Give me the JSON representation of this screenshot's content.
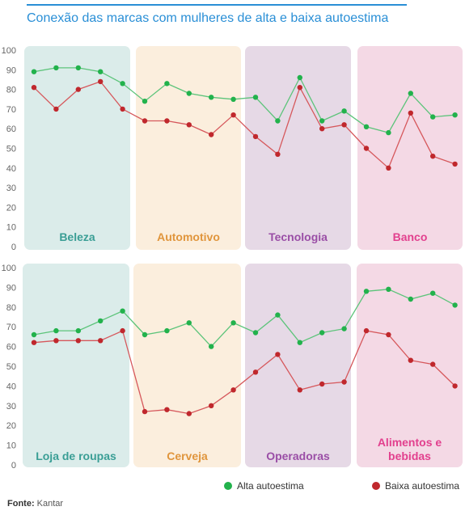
{
  "title": "Conexão das marcas com mulheres de alta e baixa autoestima",
  "legend": {
    "high": "Alta autoestima",
    "low": "Baixa autoestima"
  },
  "source": {
    "label": "Fonte:",
    "value": "Kantar"
  },
  "colors": {
    "green": "#22b24c",
    "red": "#c0282d",
    "green_line": "#5cc47a",
    "red_line": "#d6585c",
    "category_bg": [
      "#dbecea",
      "#fbeedd",
      "#e6d9e6",
      "#f4d9e5"
    ],
    "category_label": [
      "#3a9e95",
      "#e0953c",
      "#9a4ea6",
      "#e2408e"
    ]
  },
  "chart_data": [
    {
      "type": "line",
      "ylim": [
        0,
        100
      ],
      "yticks": [
        "0",
        "10",
        "20",
        "30",
        "40",
        "50",
        "60",
        "70",
        "80",
        "90",
        "100"
      ],
      "categories": [
        {
          "label": "Beleza",
          "x": [
            1,
            5
          ]
        },
        {
          "label": "Automotivo",
          "x": [
            6,
            10
          ]
        },
        {
          "label": "Tecnologia",
          "x": [
            11,
            15
          ]
        },
        {
          "label": "Banco",
          "x": [
            16,
            20
          ]
        }
      ],
      "x": [
        1,
        2,
        3,
        4,
        5,
        6,
        7,
        8,
        9,
        10,
        11,
        12,
        13,
        14,
        15,
        16,
        17,
        18,
        19,
        20
      ],
      "series": [
        {
          "name": "Alta autoestima",
          "color": "green",
          "values": [
            89,
            91,
            91,
            89,
            83,
            74,
            83,
            78,
            76,
            75,
            76,
            64,
            86,
            64,
            69,
            61,
            58,
            78,
            66,
            67
          ]
        },
        {
          "name": "Baixa autoestima",
          "color": "red",
          "values": [
            81,
            70,
            80,
            84,
            70,
            64,
            64,
            62,
            57,
            67,
            56,
            47,
            81,
            60,
            62,
            50,
            40,
            68,
            46,
            42
          ]
        }
      ]
    },
    {
      "type": "line",
      "ylim": [
        0,
        100
      ],
      "yticks": [
        "0",
        "10",
        "20",
        "30",
        "40",
        "50",
        "60",
        "70",
        "80",
        "90",
        "100"
      ],
      "categories": [
        {
          "label": "Loja de roupas",
          "x": [
            1,
            5
          ]
        },
        {
          "label": "Cerveja",
          "x": [
            6,
            10
          ]
        },
        {
          "label": "Operadoras",
          "x": [
            11,
            15
          ]
        },
        {
          "label": "Alimentos e bebidas",
          "x": [
            16,
            20
          ]
        }
      ],
      "x": [
        1,
        2,
        3,
        4,
        5,
        6,
        7,
        8,
        9,
        10,
        11,
        12,
        13,
        14,
        15,
        16,
        17,
        18,
        19,
        20
      ],
      "series": [
        {
          "name": "Alta autoestima",
          "color": "green",
          "values": [
            66,
            68,
            68,
            73,
            78,
            66,
            68,
            72,
            60,
            72,
            67,
            76,
            62,
            67,
            69,
            88,
            89,
            84,
            87,
            81
          ]
        },
        {
          "name": "Baixa autoestima",
          "color": "red",
          "values": [
            62,
            63,
            63,
            63,
            68,
            27,
            28,
            26,
            30,
            38,
            47,
            56,
            38,
            41,
            42,
            68,
            66,
            53,
            51,
            40
          ]
        }
      ]
    }
  ]
}
